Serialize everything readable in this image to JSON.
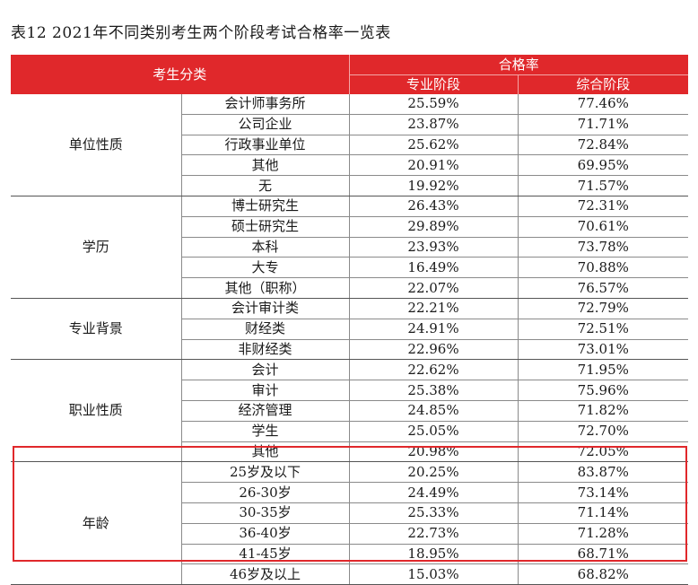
{
  "title": "表12  2021年不同类别考生两个阶段考试合格率一览表",
  "header": {
    "category": "考生分类",
    "pass_rate": "合格率",
    "stage1": "专业阶段",
    "stage2": "综合阶段"
  },
  "groups": [
    {
      "name": "单位性质",
      "rows": [
        {
          "label": "会计师事务所",
          "stage1": "25.59%",
          "stage2": "77.46%"
        },
        {
          "label": "公司企业",
          "stage1": "23.87%",
          "stage2": "71.71%"
        },
        {
          "label": "行政事业单位",
          "stage1": "25.62%",
          "stage2": "72.84%"
        },
        {
          "label": "其他",
          "stage1": "20.91%",
          "stage2": "69.95%"
        },
        {
          "label": "无",
          "stage1": "19.92%",
          "stage2": "71.57%"
        }
      ]
    },
    {
      "name": "学历",
      "rows": [
        {
          "label": "博士研究生",
          "stage1": "26.43%",
          "stage2": "72.31%"
        },
        {
          "label": "硕士研究生",
          "stage1": "29.89%",
          "stage2": "70.61%"
        },
        {
          "label": "本科",
          "stage1": "23.93%",
          "stage2": "73.78%"
        },
        {
          "label": "大专",
          "stage1": "16.49%",
          "stage2": "70.88%"
        },
        {
          "label": "其他（职称）",
          "stage1": "22.07%",
          "stage2": "76.57%"
        }
      ]
    },
    {
      "name": "专业背景",
      "rows": [
        {
          "label": "会计审计类",
          "stage1": "22.21%",
          "stage2": "72.79%"
        },
        {
          "label": "财经类",
          "stage1": "24.91%",
          "stage2": "72.51%"
        },
        {
          "label": "非财经类",
          "stage1": "22.96%",
          "stage2": "73.01%"
        }
      ]
    },
    {
      "name": "职业性质",
      "rows": [
        {
          "label": "会计",
          "stage1": "22.62%",
          "stage2": "71.95%"
        },
        {
          "label": "审计",
          "stage1": "25.38%",
          "stage2": "75.96%"
        },
        {
          "label": "经济管理",
          "stage1": "24.85%",
          "stage2": "71.82%"
        },
        {
          "label": "学生",
          "stage1": "25.05%",
          "stage2": "72.70%"
        },
        {
          "label": "其他",
          "stage1": "20.98%",
          "stage2": "72.05%"
        }
      ]
    },
    {
      "name": "年龄",
      "rows": [
        {
          "label": "25岁及以下",
          "stage1": "20.25%",
          "stage2": "83.87%"
        },
        {
          "label": "26-30岁",
          "stage1": "24.49%",
          "stage2": "73.14%"
        },
        {
          "label": "30-35岁",
          "stage1": "25.33%",
          "stage2": "71.14%"
        },
        {
          "label": "36-40岁",
          "stage1": "22.73%",
          "stage2": "71.28%"
        },
        {
          "label": "41-45岁",
          "stage1": "18.95%",
          "stage2": "68.71%"
        },
        {
          "label": "46岁及以上",
          "stage1": "15.03%",
          "stage2": "68.82%"
        }
      ]
    }
  ],
  "highlight_color": "#e0282b",
  "header_color": "#e0282b"
}
